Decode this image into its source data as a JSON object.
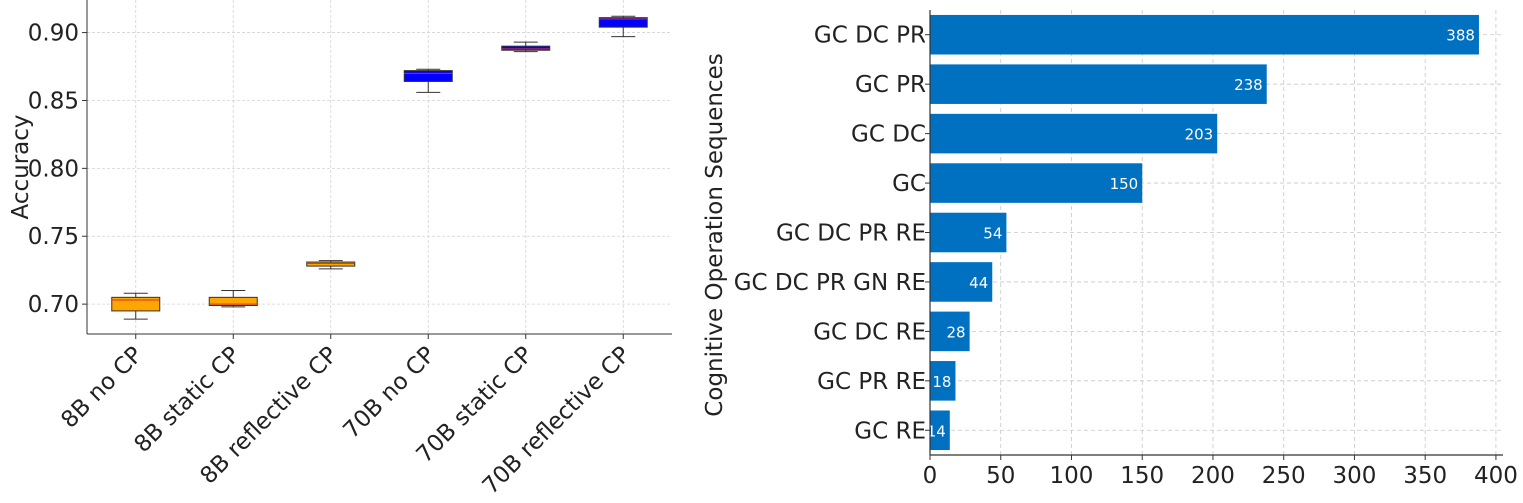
{
  "chart_data": [
    {
      "type": "box",
      "title": "",
      "xlabel": "",
      "ylabel": "Accuracy",
      "ylim": [
        0.678,
        0.924
      ],
      "yticks": [
        0.7,
        0.75,
        0.8,
        0.85,
        0.9
      ],
      "ytick_labels": [
        "0.70",
        "0.75",
        "0.80",
        "0.85",
        "0.90"
      ],
      "grid": true,
      "categories": [
        "8B no CP",
        "8B static CP",
        "8B reflective CP",
        "70B no CP",
        "70B static CP",
        "70B reflective CP"
      ],
      "boxes": [
        {
          "label": "8B no CP",
          "whisker_low": 0.689,
          "q1": 0.695,
          "median": 0.703,
          "q3": 0.705,
          "whisker_high": 0.708,
          "color": "#FFA500"
        },
        {
          "label": "8B static CP",
          "whisker_low": 0.698,
          "q1": 0.699,
          "median": 0.7,
          "q3": 0.705,
          "whisker_high": 0.71,
          "color": "#FFA500"
        },
        {
          "label": "8B reflective CP",
          "whisker_low": 0.726,
          "q1": 0.728,
          "median": 0.73,
          "q3": 0.731,
          "whisker_high": 0.732,
          "color": "#FFA500"
        },
        {
          "label": "70B no CP",
          "whisker_low": 0.856,
          "q1": 0.864,
          "median": 0.87,
          "q3": 0.872,
          "whisker_high": 0.873,
          "color": "#0000FF"
        },
        {
          "label": "70B static CP",
          "whisker_low": 0.886,
          "q1": 0.887,
          "median": 0.888,
          "q3": 0.89,
          "whisker_high": 0.893,
          "color": "#0000FF"
        },
        {
          "label": "70B reflective CP",
          "whisker_low": 0.897,
          "q1": 0.904,
          "median": 0.91,
          "q3": 0.911,
          "whisker_high": 0.912,
          "color": "#0000FF"
        }
      ]
    },
    {
      "type": "barh",
      "title": "",
      "xlabel": "",
      "ylabel": "Cognitive Operation Sequences",
      "xlim": [
        0,
        405
      ],
      "xticks": [
        0,
        50,
        100,
        150,
        200,
        250,
        300,
        350,
        400
      ],
      "grid": true,
      "bar_color": "#0070C0",
      "categories": [
        "GC DC PR",
        "GC PR",
        "GC DC",
        "GC",
        "GC DC PR RE",
        "GC DC PR GN RE",
        "GC DC RE",
        "GC PR RE",
        "GC RE"
      ],
      "values": [
        388,
        238,
        203,
        150,
        54,
        44,
        28,
        18,
        14
      ],
      "value_labels": [
        "388",
        "238",
        "203",
        "150",
        "54",
        "44",
        "28",
        "18",
        "14"
      ]
    }
  ]
}
